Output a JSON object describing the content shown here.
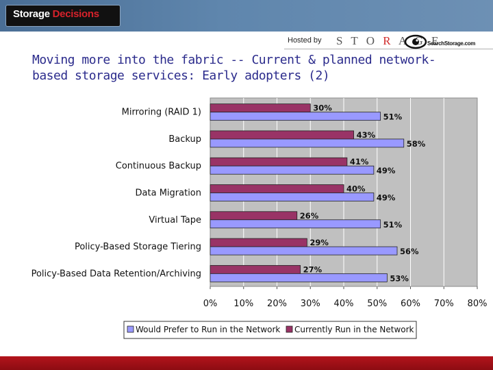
{
  "header": {
    "logo_word1": "Storage",
    "logo_word2": "Decisions",
    "hosted_by": "Hosted by",
    "storage_brand_left": "S T O",
    "storage_brand_mid": "R",
    "storage_brand_right": "A G E",
    "searchstorage_text": "SearchStorage.com"
  },
  "slide": {
    "title": "Moving more into the fabric -- Current & planned network-based storage services: Early adopters (2)"
  },
  "colors": {
    "series_current": "#993366",
    "series_prefer": "#9999ff",
    "plot_bg": "#c0c0c0",
    "header_blue": "#5f86ad",
    "footer_red": "#a8121a"
  },
  "chart_data": {
    "type": "bar",
    "orientation": "horizontal",
    "categories": [
      "Mirroring (RAID 1)",
      "Backup",
      "Continuous Backup",
      "Data Migration",
      "Virtual Tape",
      "Policy-Based Storage Tiering",
      "Policy-Based Data Retention/Archiving"
    ],
    "series": [
      {
        "name": "Currently Run in the Network",
        "values": [
          30,
          43,
          41,
          40,
          26,
          29,
          27
        ],
        "labels": [
          "30%",
          "43%",
          "41%",
          "40%",
          "26%",
          "29%",
          "27%"
        ]
      },
      {
        "name": "Would Prefer to Run in the Network",
        "values": [
          51,
          58,
          49,
          49,
          51,
          56,
          53
        ],
        "labels": [
          "51%",
          "58%",
          "49%",
          "49%",
          "51%",
          "56%",
          "53%"
        ]
      }
    ],
    "legend_order": [
      "Would Prefer to Run in the Network",
      "Currently Run in the Network"
    ],
    "xlim": [
      0,
      80
    ],
    "xticks": [
      "0%",
      "10%",
      "20%",
      "30%",
      "40%",
      "50%",
      "60%",
      "70%",
      "80%"
    ],
    "grid": true,
    "legend": "bottom"
  }
}
